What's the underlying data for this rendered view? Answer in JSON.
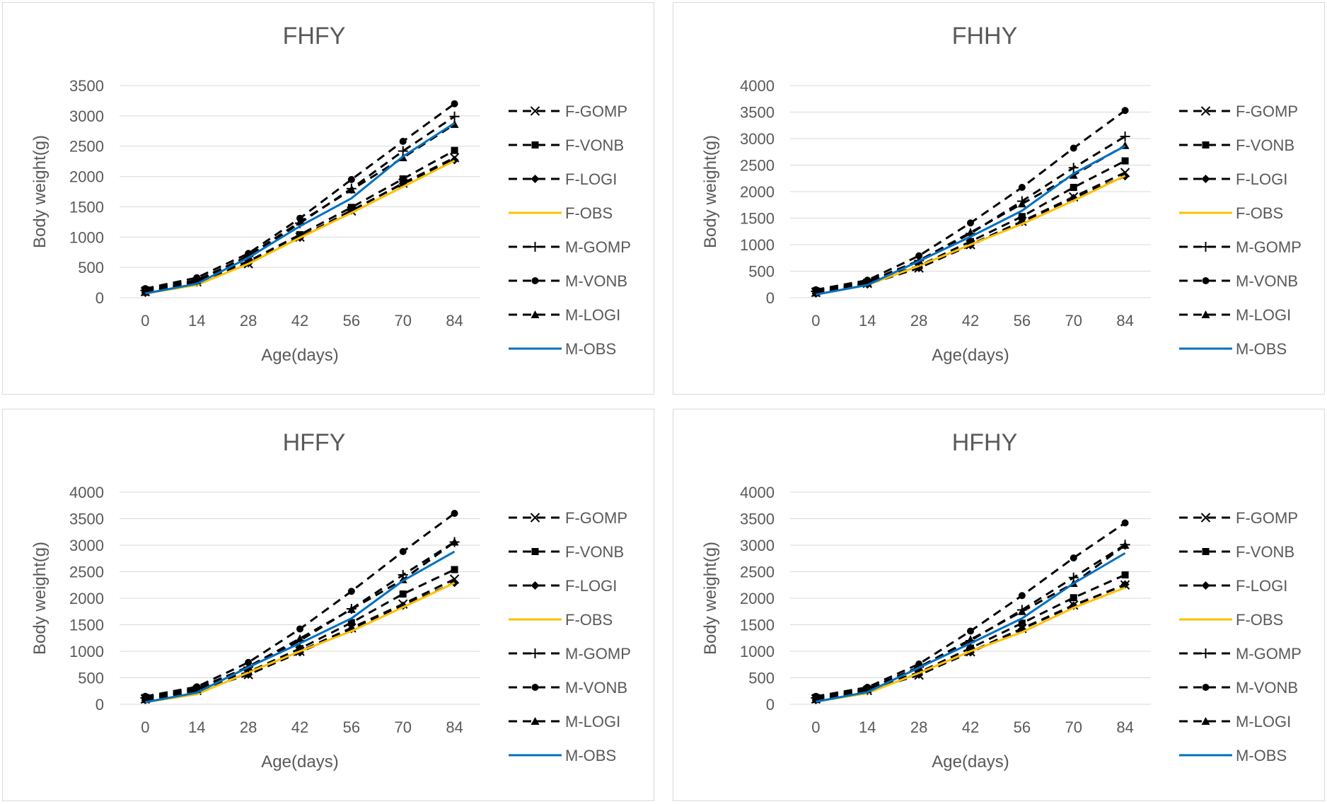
{
  "colors": {
    "model": "#000000",
    "f_obs": "#ffc000",
    "m_obs": "#0070c0",
    "text": "#595959",
    "grid": "#d9d9d9"
  },
  "chart_data": [
    {
      "type": "line",
      "title": "FHFY",
      "xlabel": "Age(days)",
      "ylabel": "Body weight(g)",
      "x": [
        0,
        14,
        28,
        42,
        56,
        70,
        84
      ],
      "ylim": [
        0,
        3500
      ],
      "yticks": [
        0,
        500,
        1000,
        1500,
        2000,
        2500,
        3000,
        3500
      ],
      "grid": true,
      "legend_position": "right",
      "series": [
        {
          "name": "F-GOMP",
          "marker": "x",
          "values": [
            100,
            260,
            560,
            1000,
            1430,
            1890,
            2310
          ]
        },
        {
          "name": "F-VONB",
          "marker": "square",
          "values": [
            130,
            290,
            600,
            1040,
            1490,
            1960,
            2430
          ]
        },
        {
          "name": "F-LOGI",
          "marker": "diamond",
          "values": [
            80,
            250,
            570,
            990,
            1440,
            1880,
            2270
          ]
        },
        {
          "name": "F-OBS",
          "marker": "none",
          "values": [
            70,
            210,
            560,
            990,
            1400,
            1830,
            2260
          ]
        },
        {
          "name": "M-GOMP",
          "marker": "plus",
          "values": [
            120,
            290,
            680,
            1230,
            1800,
            2420,
            2990
          ]
        },
        {
          "name": "M-VONB",
          "marker": "circle",
          "values": [
            150,
            330,
            730,
            1310,
            1950,
            2580,
            3200
          ]
        },
        {
          "name": "M-LOGI",
          "marker": "triangle",
          "values": [
            90,
            280,
            690,
            1250,
            1780,
            2310,
            2860
          ]
        },
        {
          "name": "M-OBS",
          "marker": "none",
          "values": [
            70,
            230,
            660,
            1180,
            1640,
            2330,
            2880
          ]
        }
      ]
    },
    {
      "type": "line",
      "title": "FHHY",
      "xlabel": "Age(days)",
      "ylabel": "Body weight(g)",
      "x": [
        0,
        14,
        28,
        42,
        56,
        70,
        84
      ],
      "ylim": [
        0,
        4000
      ],
      "yticks": [
        0,
        500,
        1000,
        1500,
        2000,
        2500,
        3000,
        3500,
        4000
      ],
      "grid": true,
      "legend_position": "right",
      "series": [
        {
          "name": "F-GOMP",
          "marker": "x",
          "values": [
            100,
            270,
            560,
            1000,
            1440,
            1900,
            2360
          ]
        },
        {
          "name": "F-VONB",
          "marker": "square",
          "values": [
            130,
            290,
            600,
            1060,
            1530,
            2080,
            2580
          ]
        },
        {
          "name": "F-LOGI",
          "marker": "diamond",
          "values": [
            80,
            250,
            560,
            990,
            1430,
            1880,
            2290
          ]
        },
        {
          "name": "F-OBS",
          "marker": "none",
          "values": [
            60,
            240,
            600,
            1000,
            1390,
            1830,
            2300
          ]
        },
        {
          "name": "M-GOMP",
          "marker": "plus",
          "values": [
            120,
            300,
            700,
            1210,
            1820,
            2450,
            3040
          ]
        },
        {
          "name": "M-VONB",
          "marker": "circle",
          "values": [
            150,
            330,
            790,
            1410,
            2080,
            2820,
            3530
          ]
        },
        {
          "name": "M-LOGI",
          "marker": "triangle",
          "values": [
            90,
            280,
            700,
            1230,
            1770,
            2310,
            2870
          ]
        },
        {
          "name": "M-OBS",
          "marker": "none",
          "values": [
            60,
            240,
            690,
            1150,
            1640,
            2340,
            2860
          ]
        }
      ]
    },
    {
      "type": "line",
      "title": "HFFY",
      "xlabel": "Age(days)",
      "ylabel": "Body weight(g)",
      "x": [
        0,
        14,
        28,
        42,
        56,
        70,
        84
      ],
      "ylim": [
        0,
        4000
      ],
      "yticks": [
        0,
        500,
        1000,
        1500,
        2000,
        2500,
        3000,
        3500,
        4000
      ],
      "grid": true,
      "legend_position": "right",
      "series": [
        {
          "name": "F-GOMP",
          "marker": "x",
          "values": [
            100,
            260,
            560,
            1000,
            1440,
            1890,
            2360
          ]
        },
        {
          "name": "F-VONB",
          "marker": "square",
          "values": [
            130,
            300,
            610,
            1050,
            1540,
            2080,
            2540
          ]
        },
        {
          "name": "F-LOGI",
          "marker": "diamond",
          "values": [
            80,
            250,
            560,
            980,
            1420,
            1860,
            2290
          ]
        },
        {
          "name": "F-OBS",
          "marker": "none",
          "values": [
            40,
            190,
            600,
            1000,
            1380,
            1830,
            2290
          ]
        },
        {
          "name": "M-GOMP",
          "marker": "plus",
          "values": [
            120,
            300,
            700,
            1200,
            1800,
            2440,
            3060
          ]
        },
        {
          "name": "M-VONB",
          "marker": "circle",
          "values": [
            150,
            330,
            790,
            1420,
            2130,
            2880,
            3600
          ]
        },
        {
          "name": "M-LOGI",
          "marker": "triangle",
          "values": [
            90,
            280,
            710,
            1240,
            1790,
            2350,
            3060
          ]
        },
        {
          "name": "M-OBS",
          "marker": "none",
          "values": [
            40,
            220,
            700,
            1150,
            1620,
            2330,
            2880
          ]
        }
      ]
    },
    {
      "type": "line",
      "title": "HFHY",
      "xlabel": "Age(days)",
      "ylabel": "Body weight(g)",
      "x": [
        0,
        14,
        28,
        42,
        56,
        70,
        84
      ],
      "ylim": [
        0,
        4000
      ],
      "yticks": [
        0,
        500,
        1000,
        1500,
        2000,
        2500,
        3000,
        3500,
        4000
      ],
      "grid": true,
      "legend_position": "right",
      "series": [
        {
          "name": "F-GOMP",
          "marker": "x",
          "values": [
            100,
            260,
            550,
            990,
            1430,
            1870,
            2250
          ]
        },
        {
          "name": "F-VONB",
          "marker": "square",
          "values": [
            130,
            290,
            600,
            1060,
            1530,
            2010,
            2440
          ]
        },
        {
          "name": "F-LOGI",
          "marker": "diamond",
          "values": [
            80,
            250,
            560,
            980,
            1420,
            1860,
            2260
          ]
        },
        {
          "name": "F-OBS",
          "marker": "none",
          "values": [
            50,
            210,
            590,
            1000,
            1360,
            1820,
            2200
          ]
        },
        {
          "name": "M-GOMP",
          "marker": "plus",
          "values": [
            120,
            290,
            700,
            1200,
            1780,
            2390,
            3010
          ]
        },
        {
          "name": "M-VONB",
          "marker": "circle",
          "values": [
            150,
            320,
            760,
            1380,
            2050,
            2760,
            3420
          ]
        },
        {
          "name": "M-LOGI",
          "marker": "triangle",
          "values": [
            90,
            280,
            700,
            1220,
            1750,
            2280,
            3000
          ]
        },
        {
          "name": "M-OBS",
          "marker": "none",
          "values": [
            50,
            230,
            690,
            1150,
            1620,
            2280,
            2850
          ]
        }
      ]
    }
  ]
}
